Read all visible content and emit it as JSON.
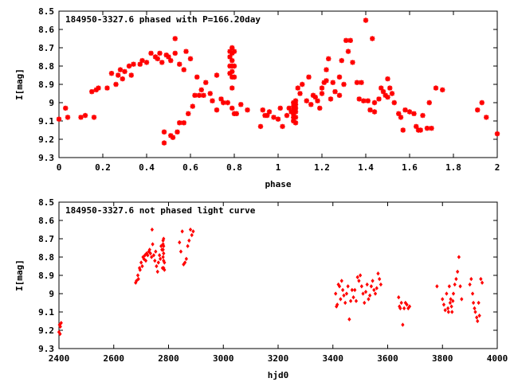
{
  "chart_data": [
    {
      "type": "scatter",
      "title": "184950-3327.6 phased with P=166.20day",
      "xlabel": "phase",
      "ylabel": "I[mag]",
      "xlim": [
        0,
        2
      ],
      "ylim": [
        9.3,
        8.5
      ],
      "y_inverted": true,
      "x_ticks": [
        "0",
        "0.2",
        "0.4",
        "0.6",
        "0.8",
        "1",
        "1.2",
        "1.4",
        "1.6",
        "1.8",
        "2"
      ],
      "y_ticks": [
        "8.5",
        "8.6",
        "8.7",
        "8.8",
        "8.9",
        "9",
        "9.1",
        "9.2",
        "9.3"
      ],
      "grid": false,
      "marker": "star",
      "color": "#ff0000",
      "points": [
        [
          0.0,
          9.09
        ],
        [
          0.03,
          9.03
        ],
        [
          0.04,
          9.08
        ],
        [
          0.1,
          9.08
        ],
        [
          0.12,
          9.07
        ],
        [
          0.15,
          8.94
        ],
        [
          0.16,
          9.08
        ],
        [
          0.17,
          8.93
        ],
        [
          0.18,
          8.92
        ],
        [
          0.22,
          8.92
        ],
        [
          0.24,
          8.84
        ],
        [
          0.26,
          8.9
        ],
        [
          0.27,
          8.85
        ],
        [
          0.28,
          8.82
        ],
        [
          0.29,
          8.87
        ],
        [
          0.3,
          8.83
        ],
        [
          0.32,
          8.8
        ],
        [
          0.33,
          8.85
        ],
        [
          0.34,
          8.79
        ],
        [
          0.37,
          8.79
        ],
        [
          0.38,
          8.77
        ],
        [
          0.4,
          8.78
        ],
        [
          0.42,
          8.73
        ],
        [
          0.44,
          8.75
        ],
        [
          0.45,
          8.76
        ],
        [
          0.46,
          8.73
        ],
        [
          0.47,
          8.78
        ],
        [
          0.48,
          9.16
        ],
        [
          0.48,
          9.22
        ],
        [
          0.49,
          8.74
        ],
        [
          0.5,
          8.75
        ],
        [
          0.51,
          8.77
        ],
        [
          0.51,
          9.18
        ],
        [
          0.52,
          9.19
        ],
        [
          0.53,
          8.65
        ],
        [
          0.53,
          8.73
        ],
        [
          0.54,
          9.16
        ],
        [
          0.55,
          8.79
        ],
        [
          0.55,
          9.11
        ],
        [
          0.57,
          9.11
        ],
        [
          0.57,
          8.82
        ],
        [
          0.58,
          8.72
        ],
        [
          0.59,
          9.06
        ],
        [
          0.6,
          8.76
        ],
        [
          0.61,
          9.02
        ],
        [
          0.62,
          8.96
        ],
        [
          0.63,
          8.86
        ],
        [
          0.64,
          8.96
        ],
        [
          0.65,
          8.93
        ],
        [
          0.66,
          8.96
        ],
        [
          0.67,
          8.89
        ],
        [
          0.69,
          8.95
        ],
        [
          0.7,
          8.99
        ],
        [
          0.72,
          8.85
        ],
        [
          0.72,
          9.04
        ],
        [
          0.74,
          8.98
        ],
        [
          0.75,
          9.0
        ],
        [
          0.77,
          9.0
        ],
        [
          0.78,
          8.72
        ],
        [
          0.78,
          8.75
        ],
        [
          0.78,
          8.8
        ],
        [
          0.78,
          8.84
        ],
        [
          0.79,
          8.7
        ],
        [
          0.79,
          8.73
        ],
        [
          0.79,
          8.77
        ],
        [
          0.79,
          8.8
        ],
        [
          0.79,
          8.83
        ],
        [
          0.79,
          8.86
        ],
        [
          0.79,
          8.92
        ],
        [
          0.79,
          9.03
        ],
        [
          0.8,
          8.72
        ],
        [
          0.8,
          8.8
        ],
        [
          0.8,
          8.86
        ],
        [
          0.8,
          9.06
        ],
        [
          0.81,
          9.06
        ],
        [
          0.83,
          9.01
        ],
        [
          0.86,
          9.04
        ],
        [
          0.92,
          9.13
        ],
        [
          0.93,
          9.04
        ],
        [
          0.94,
          9.07
        ],
        [
          0.95,
          9.07
        ],
        [
          0.96,
          9.05
        ],
        [
          0.98,
          9.08
        ],
        [
          1.0,
          9.09
        ],
        [
          1.01,
          9.03
        ],
        [
          1.02,
          9.13
        ],
        [
          1.04,
          9.07
        ],
        [
          1.05,
          9.03
        ],
        [
          1.06,
          9.05
        ],
        [
          1.07,
          9.0
        ],
        [
          1.07,
          9.02
        ],
        [
          1.07,
          9.04
        ],
        [
          1.07,
          9.06
        ],
        [
          1.07,
          9.08
        ],
        [
          1.07,
          9.1
        ],
        [
          1.08,
          8.99
        ],
        [
          1.08,
          9.01
        ],
        [
          1.08,
          9.03
        ],
        [
          1.08,
          9.05
        ],
        [
          1.08,
          9.08
        ],
        [
          1.08,
          9.11
        ],
        [
          1.09,
          8.92
        ],
        [
          1.1,
          8.95
        ],
        [
          1.11,
          8.9
        ],
        [
          1.13,
          8.99
        ],
        [
          1.14,
          8.86
        ],
        [
          1.15,
          9.01
        ],
        [
          1.16,
          8.96
        ],
        [
          1.17,
          8.97
        ],
        [
          1.18,
          8.99
        ],
        [
          1.19,
          9.03
        ],
        [
          1.2,
          8.92
        ],
        [
          1.2,
          8.95
        ],
        [
          1.21,
          8.89
        ],
        [
          1.22,
          8.82
        ],
        [
          1.22,
          8.88
        ],
        [
          1.23,
          8.76
        ],
        [
          1.24,
          8.98
        ],
        [
          1.25,
          8.89
        ],
        [
          1.26,
          8.94
        ],
        [
          1.28,
          8.86
        ],
        [
          1.28,
          8.96
        ],
        [
          1.29,
          8.77
        ],
        [
          1.3,
          8.9
        ],
        [
          1.31,
          8.66
        ],
        [
          1.32,
          8.72
        ],
        [
          1.33,
          8.66
        ],
        [
          1.34,
          8.78
        ],
        [
          1.36,
          8.89
        ],
        [
          1.37,
          8.98
        ],
        [
          1.38,
          8.89
        ],
        [
          1.39,
          8.99
        ],
        [
          1.4,
          8.55
        ],
        [
          1.41,
          8.99
        ],
        [
          1.42,
          9.04
        ],
        [
          1.43,
          8.65
        ],
        [
          1.44,
          9.0
        ],
        [
          1.44,
          9.05
        ],
        [
          1.46,
          8.98
        ],
        [
          1.47,
          8.92
        ],
        [
          1.48,
          8.94
        ],
        [
          1.49,
          8.96
        ],
        [
          1.5,
          8.97
        ],
        [
          1.5,
          8.87
        ],
        [
          1.51,
          8.92
        ],
        [
          1.52,
          8.95
        ],
        [
          1.53,
          9.0
        ],
        [
          1.55,
          9.06
        ],
        [
          1.56,
          9.08
        ],
        [
          1.57,
          9.15
        ],
        [
          1.58,
          9.04
        ],
        [
          1.6,
          9.05
        ],
        [
          1.62,
          9.06
        ],
        [
          1.63,
          9.13
        ],
        [
          1.64,
          9.15
        ],
        [
          1.65,
          9.15
        ],
        [
          1.66,
          9.07
        ],
        [
          1.68,
          9.14
        ],
        [
          1.69,
          9.0
        ],
        [
          1.7,
          9.14
        ],
        [
          1.72,
          8.92
        ],
        [
          1.75,
          8.93
        ],
        [
          1.91,
          9.04
        ],
        [
          1.93,
          9.0
        ],
        [
          1.95,
          9.08
        ],
        [
          2.0,
          9.17
        ]
      ]
    },
    {
      "type": "scatter",
      "title": "184950-3327.6 not phased light curve",
      "xlabel": "hjd0",
      "ylabel": "I[mag]",
      "xlim": [
        2400,
        4000
      ],
      "ylim": [
        9.3,
        8.5
      ],
      "y_inverted": true,
      "x_ticks": [
        "2400",
        "2600",
        "2800",
        "3000",
        "3200",
        "3400",
        "3600",
        "3800",
        "4000"
      ],
      "y_ticks": [
        "8.5",
        "8.6",
        "8.7",
        "8.8",
        "8.9",
        "9",
        "9.1",
        "9.2",
        "9.3"
      ],
      "grid": false,
      "marker": "diamond",
      "color": "#ff0000",
      "points": [
        [
          2400,
          9.21
        ],
        [
          2402,
          9.17
        ],
        [
          2404,
          9.22
        ],
        [
          2405,
          9.18
        ],
        [
          2408,
          9.16
        ],
        [
          2680,
          8.94
        ],
        [
          2683,
          8.93
        ],
        [
          2688,
          8.9
        ],
        [
          2690,
          8.92
        ],
        [
          2694,
          8.86
        ],
        [
          2696,
          8.87
        ],
        [
          2700,
          8.83
        ],
        [
          2704,
          8.85
        ],
        [
          2707,
          8.8
        ],
        [
          2710,
          8.81
        ],
        [
          2714,
          8.79
        ],
        [
          2717,
          8.82
        ],
        [
          2720,
          8.78
        ],
        [
          2724,
          8.79
        ],
        [
          2728,
          8.77
        ],
        [
          2731,
          8.76
        ],
        [
          2734,
          8.78
        ],
        [
          2738,
          8.8
        ],
        [
          2740,
          8.65
        ],
        [
          2742,
          8.73
        ],
        [
          2746,
          8.79
        ],
        [
          2750,
          8.82
        ],
        [
          2753,
          8.77
        ],
        [
          2756,
          8.85
        ],
        [
          2760,
          8.88
        ],
        [
          2763,
          8.83
        ],
        [
          2767,
          8.79
        ],
        [
          2770,
          8.81
        ],
        [
          2773,
          8.74
        ],
        [
          2776,
          8.76
        ],
        [
          2778,
          8.86
        ],
        [
          2780,
          8.71
        ],
        [
          2780,
          8.73
        ],
        [
          2780,
          8.76
        ],
        [
          2780,
          8.8
        ],
        [
          2782,
          8.7
        ],
        [
          2782,
          8.74
        ],
        [
          2782,
          8.78
        ],
        [
          2782,
          8.82
        ],
        [
          2782,
          8.86
        ],
        [
          2785,
          8.83
        ],
        [
          2785,
          8.87
        ],
        [
          2840,
          8.72
        ],
        [
          2845,
          8.77
        ],
        [
          2850,
          8.66
        ],
        [
          2855,
          8.84
        ],
        [
          2860,
          8.83
        ],
        [
          2865,
          8.81
        ],
        [
          2870,
          8.74
        ],
        [
          2875,
          8.71
        ],
        [
          2880,
          8.65
        ],
        [
          2885,
          8.68
        ],
        [
          2890,
          8.66
        ],
        [
          3410,
          9.0
        ],
        [
          3413,
          9.07
        ],
        [
          3416,
          9.06
        ],
        [
          3420,
          8.95
        ],
        [
          3424,
          8.96
        ],
        [
          3428,
          9.03
        ],
        [
          3432,
          8.93
        ],
        [
          3436,
          8.98
        ],
        [
          3440,
          9.01
        ],
        [
          3445,
          9.05
        ],
        [
          3450,
          9.0
        ],
        [
          3455,
          8.96
        ],
        [
          3460,
          9.14
        ],
        [
          3465,
          9.04
        ],
        [
          3470,
          8.98
        ],
        [
          3475,
          9.02
        ],
        [
          3480,
          8.98
        ],
        [
          3485,
          9.04
        ],
        [
          3490,
          8.91
        ],
        [
          3495,
          8.93
        ],
        [
          3500,
          8.9
        ],
        [
          3505,
          8.96
        ],
        [
          3510,
          9.0
        ],
        [
          3515,
          9.05
        ],
        [
          3520,
          8.99
        ],
        [
          3525,
          8.95
        ],
        [
          3530,
          9.03
        ],
        [
          3535,
          9.01
        ],
        [
          3540,
          8.96
        ],
        [
          3545,
          8.93
        ],
        [
          3550,
          8.98
        ],
        [
          3555,
          9.0
        ],
        [
          3560,
          8.97
        ],
        [
          3565,
          8.89
        ],
        [
          3570,
          8.92
        ],
        [
          3575,
          8.95
        ],
        [
          3640,
          9.02
        ],
        [
          3643,
          9.07
        ],
        [
          3646,
          9.08
        ],
        [
          3650,
          9.05
        ],
        [
          3655,
          9.17
        ],
        [
          3660,
          9.08
        ],
        [
          3665,
          9.05
        ],
        [
          3670,
          9.06
        ],
        [
          3675,
          9.08
        ],
        [
          3680,
          9.07
        ],
        [
          3780,
          8.96
        ],
        [
          3800,
          9.03
        ],
        [
          3805,
          9.06
        ],
        [
          3810,
          9.09
        ],
        [
          3815,
          9.0
        ],
        [
          3820,
          9.08
        ],
        [
          3822,
          9.1
        ],
        [
          3825,
          8.96
        ],
        [
          3828,
          9.05
        ],
        [
          3830,
          9.03
        ],
        [
          3833,
          9.07
        ],
        [
          3835,
          9.1
        ],
        [
          3838,
          9.04
        ],
        [
          3840,
          9.0
        ],
        [
          3845,
          8.95
        ],
        [
          3850,
          8.92
        ],
        [
          3855,
          8.88
        ],
        [
          3860,
          8.8
        ],
        [
          3865,
          8.96
        ],
        [
          3870,
          9.03
        ],
        [
          3900,
          8.95
        ],
        [
          3905,
          8.92
        ],
        [
          3910,
          9.0
        ],
        [
          3913,
          9.05
        ],
        [
          3917,
          9.08
        ],
        [
          3920,
          9.1
        ],
        [
          3925,
          9.13
        ],
        [
          3928,
          9.15
        ],
        [
          3932,
          9.05
        ],
        [
          3935,
          9.12
        ],
        [
          3940,
          8.92
        ],
        [
          3945,
          8.94
        ]
      ]
    }
  ]
}
